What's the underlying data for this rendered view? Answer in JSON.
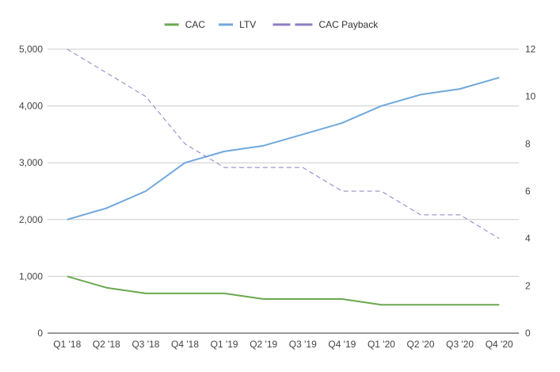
{
  "chart_data": {
    "type": "line",
    "categories": [
      "Q1 '18",
      "Q2 '18",
      "Q3 '18",
      "Q4 '18",
      "Q1 '19",
      "Q2 '19",
      "Q3 '19",
      "Q4 '19",
      "Q1 '20",
      "Q2 '20",
      "Q3 '20",
      "Q4 '20"
    ],
    "series": [
      {
        "name": "CAC",
        "axis": "left",
        "style": "solid",
        "color": "#6aa84f",
        "values": [
          1000,
          800,
          700,
          700,
          700,
          600,
          600,
          600,
          500,
          500,
          500,
          500
        ]
      },
      {
        "name": "LTV",
        "axis": "left",
        "style": "solid",
        "color": "#6fa8dc",
        "values": [
          2000,
          2200,
          2500,
          3000,
          3200,
          3300,
          3500,
          3700,
          4000,
          4200,
          4300,
          4500
        ]
      },
      {
        "name": "CAC Payback",
        "axis": "right",
        "style": "dashed",
        "color": "#8e7cc3",
        "values": [
          12,
          11,
          10,
          8,
          7,
          7,
          7,
          6,
          6,
          5,
          5,
          4
        ]
      }
    ],
    "y_left": {
      "min": 0,
      "max": 5000,
      "ticks": [
        "0",
        "1,000",
        "2,000",
        "3,000",
        "4,000",
        "5,000"
      ]
    },
    "y_right": {
      "min": 0,
      "max": 12,
      "ticks": [
        "0",
        "2",
        "4",
        "6",
        "8",
        "10",
        "12"
      ]
    },
    "grid": true,
    "legend_position": "top-center"
  }
}
